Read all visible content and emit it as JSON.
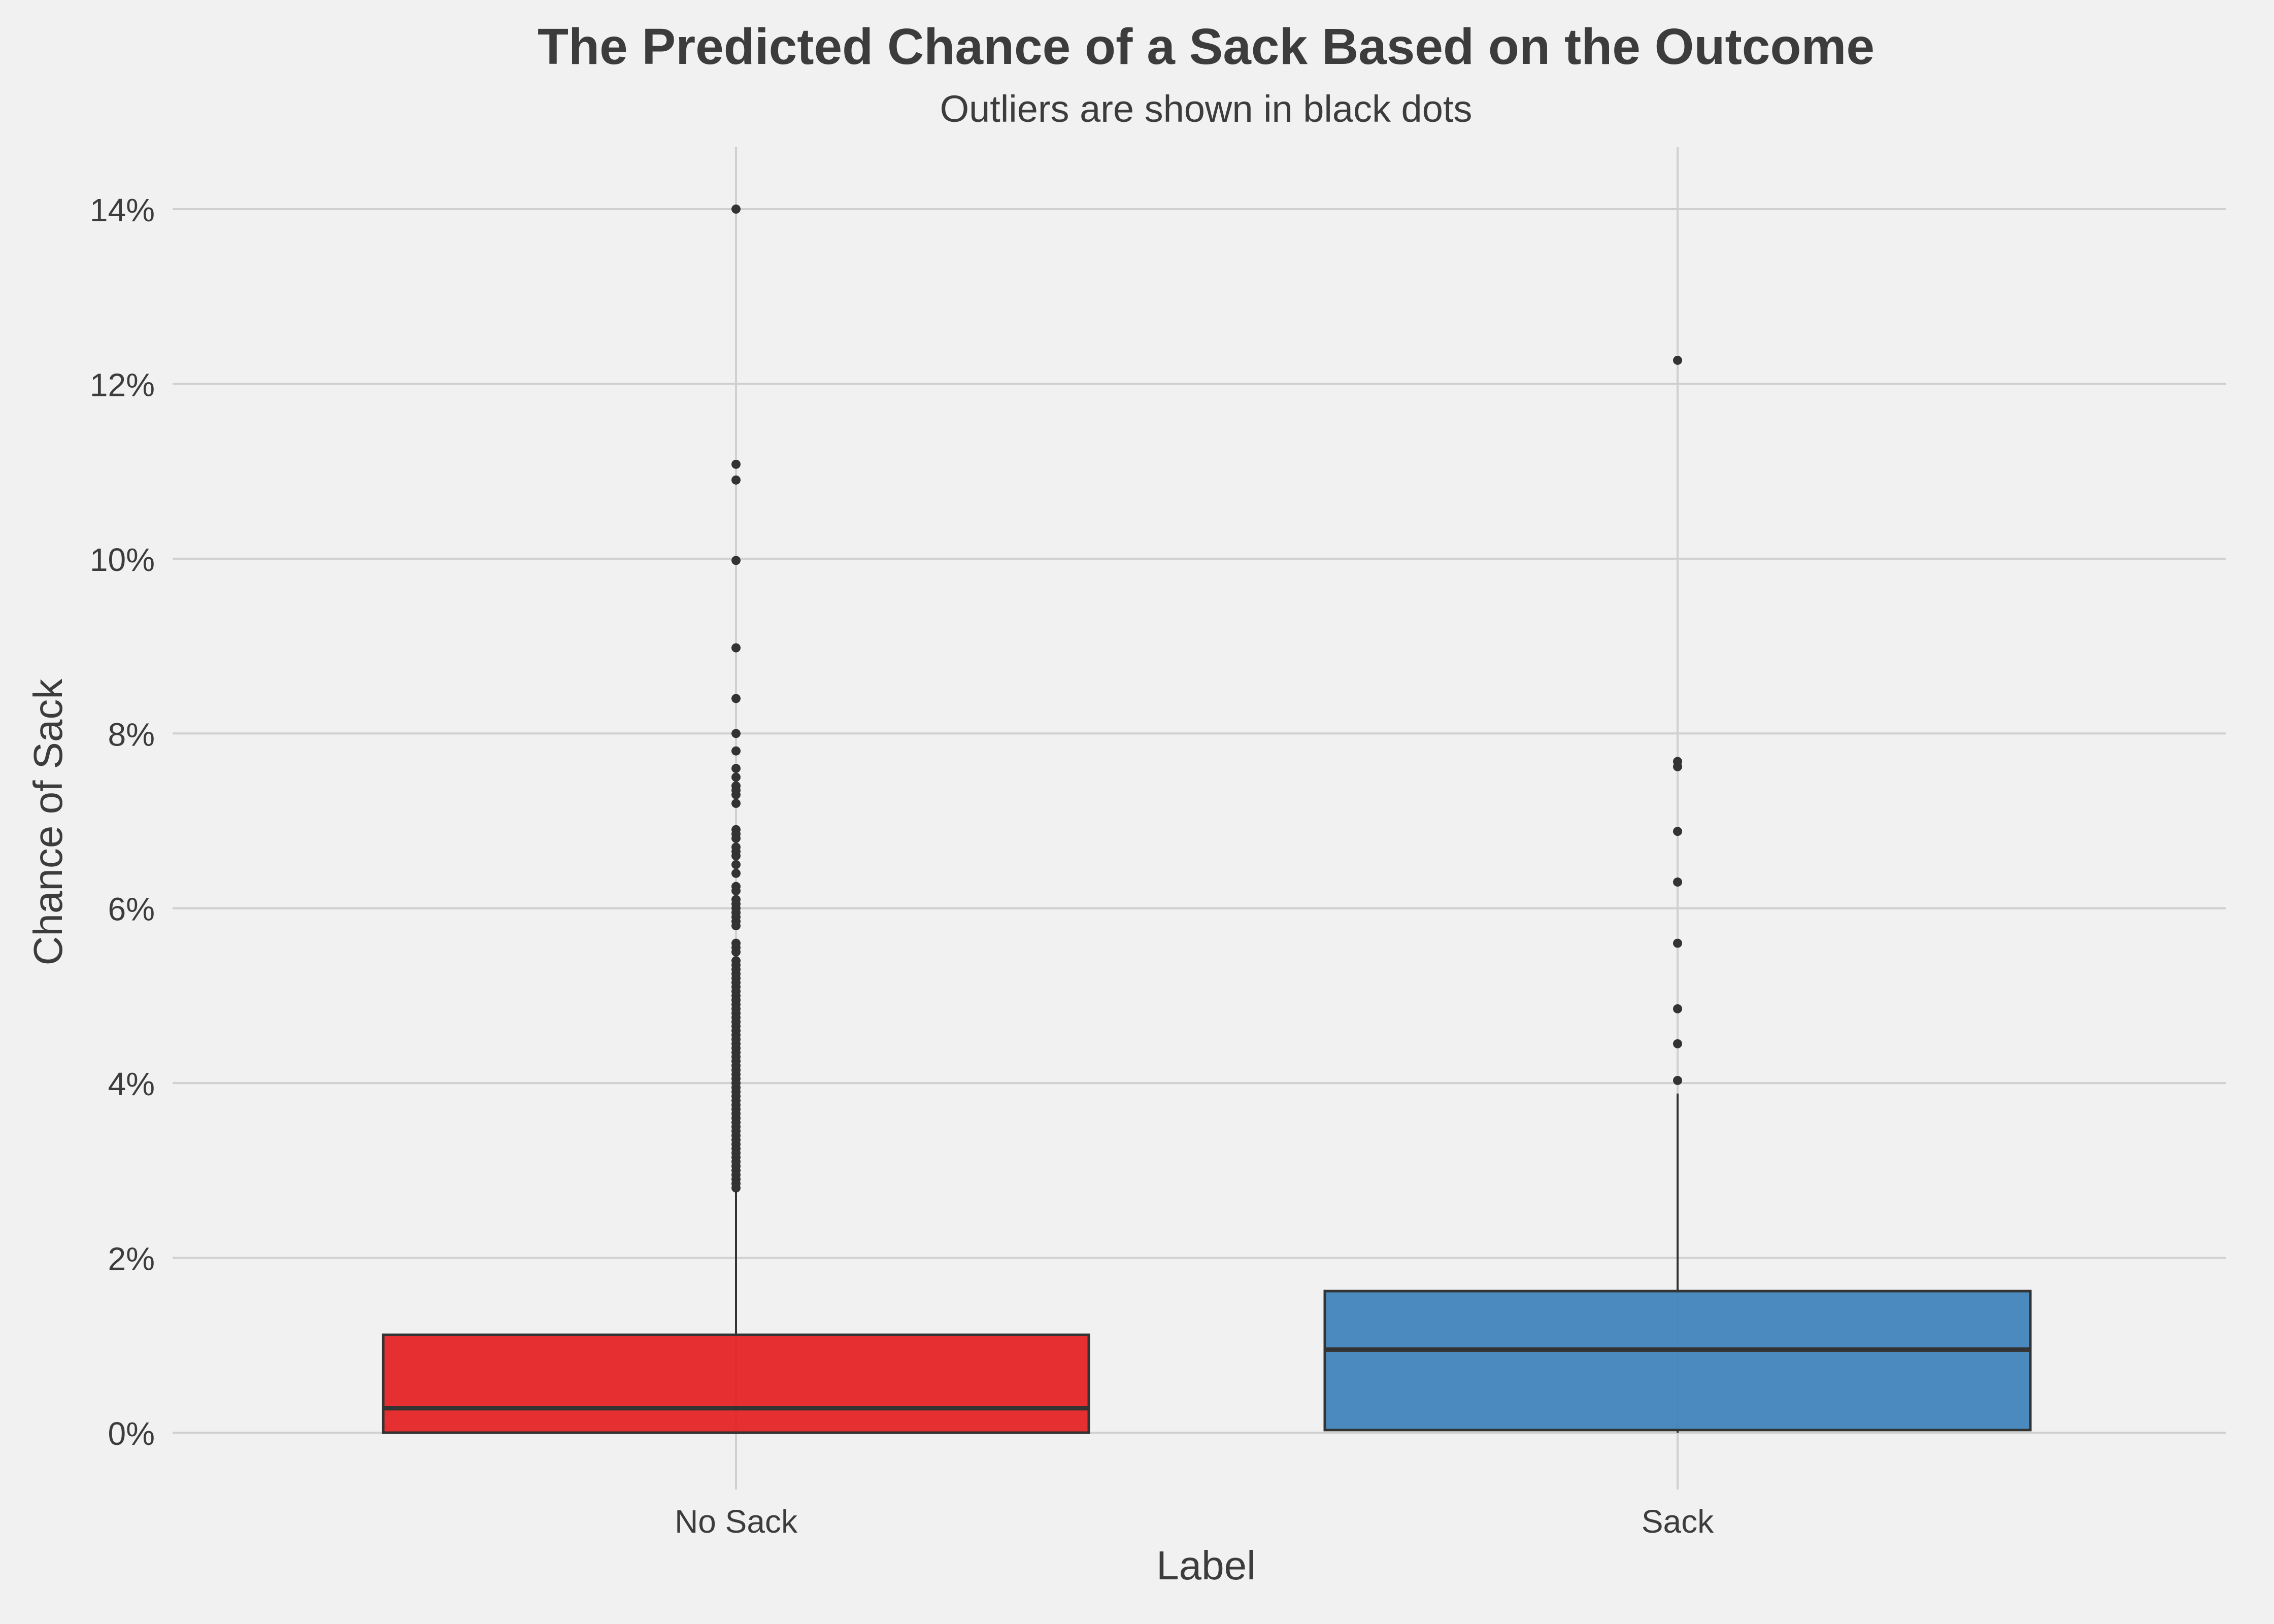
{
  "chart_data": {
    "type": "box",
    "title": "The Predicted Chance of a Sack Based on the Outcome",
    "subtitle": "Outliers are shown in black dots",
    "xlabel": "Label",
    "ylabel": "Chance of Sack",
    "y_tick_labels": [
      "0%",
      "2%",
      "4%",
      "6%",
      "8%",
      "10%",
      "12%",
      "14%"
    ],
    "y_ticks": [
      0,
      2,
      4,
      6,
      8,
      10,
      12,
      14
    ],
    "ylim": [
      -0.4,
      14.7
    ],
    "grid": true,
    "categories": [
      "No Sack",
      "Sack"
    ],
    "series": [
      {
        "category": "No Sack",
        "color": "#e41a1c",
        "whisker_low": 0.0,
        "q1": 0.0,
        "median": 0.28,
        "q3": 1.12,
        "whisker_high": 2.78,
        "outliers": [
          14.0,
          11.08,
          10.9,
          9.98,
          8.98,
          8.4,
          8.0,
          7.8,
          7.6,
          7.5,
          7.4,
          7.35,
          7.3,
          7.2,
          6.9,
          6.85,
          6.8,
          6.7,
          6.65,
          6.6,
          6.5,
          6.4,
          6.25,
          6.2,
          6.1,
          6.05,
          6.0,
          5.95,
          5.9,
          5.85,
          5.8,
          5.6,
          5.55,
          5.5,
          5.4,
          5.35,
          5.3,
          5.25,
          5.2,
          5.15,
          5.1,
          5.05,
          5.0,
          4.95,
          4.9,
          4.85,
          4.8,
          4.75,
          4.7,
          4.65,
          4.6,
          4.55,
          4.5,
          4.45,
          4.4,
          4.35,
          4.3,
          4.25,
          4.2,
          4.15,
          4.1,
          4.05,
          4.0,
          3.95,
          3.9,
          3.85,
          3.8,
          3.75,
          3.7,
          3.65,
          3.6,
          3.55,
          3.5,
          3.45,
          3.4,
          3.35,
          3.3,
          3.25,
          3.2,
          3.15,
          3.1,
          3.05,
          3.0,
          2.95,
          2.9,
          2.85,
          2.8
        ]
      },
      {
        "category": "Sack",
        "color": "#377eb8",
        "whisker_low": 0.0,
        "q1": 0.03,
        "median": 0.95,
        "q3": 1.62,
        "whisker_high": 3.88,
        "outliers": [
          12.27,
          7.68,
          7.62,
          6.88,
          6.3,
          5.6,
          4.85,
          4.45,
          4.03
        ]
      }
    ]
  }
}
